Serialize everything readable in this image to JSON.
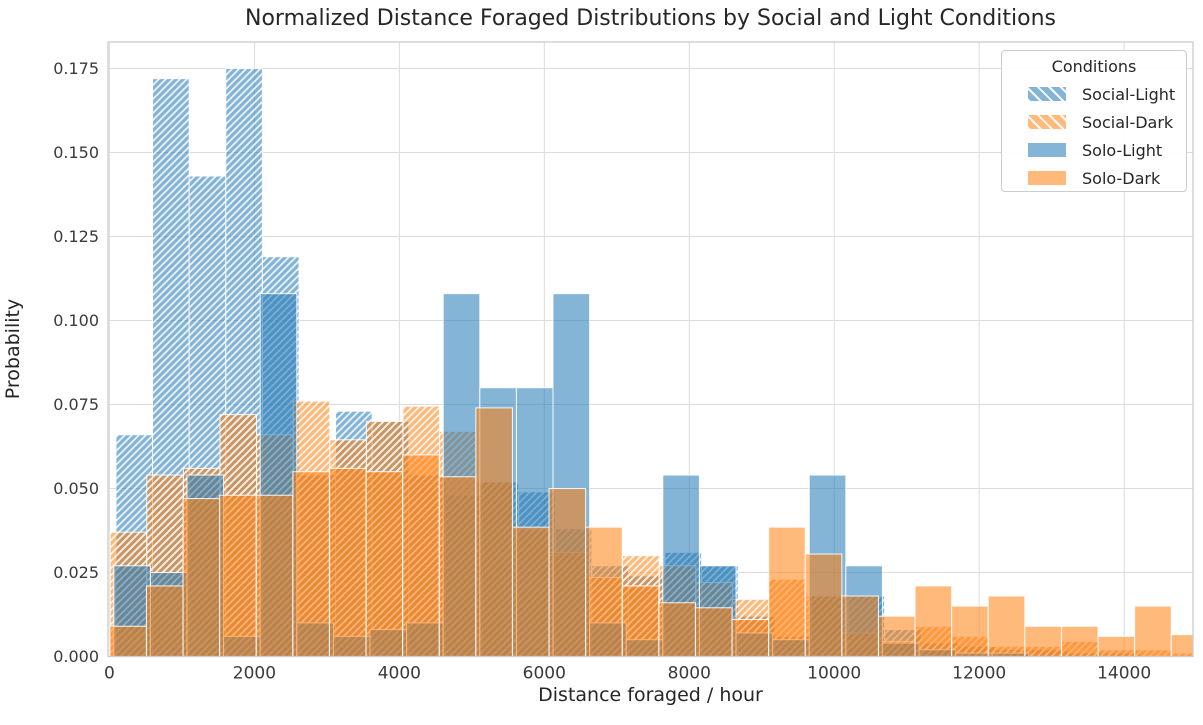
{
  "figure": {
    "title": "Normalized Distance Foraged Distributions by Social and Light Conditions",
    "xlabel": "Distance foraged / hour",
    "ylabel": "Probability"
  },
  "axes": {
    "xticks": [
      0,
      2000,
      4000,
      6000,
      8000,
      10000,
      12000,
      14000
    ],
    "ytick_labels": [
      "0.000",
      "0.025",
      "0.050",
      "0.075",
      "0.100",
      "0.125",
      "0.150",
      "0.175"
    ],
    "yticks": [
      0,
      0.025,
      0.05,
      0.075,
      0.1,
      0.125,
      0.15,
      0.175
    ],
    "xlim": [
      -20,
      14950
    ],
    "ylim": [
      0,
      0.1829
    ],
    "grid": true
  },
  "legend": {
    "title": "Conditions",
    "entries": [
      {
        "label": "Social-Light",
        "color": "#1f77b4",
        "hatch": true
      },
      {
        "label": "Social-Dark",
        "color": "#ff7f0e",
        "hatch": true
      },
      {
        "label": "Solo-Light",
        "color": "#1f77b4",
        "hatch": false
      },
      {
        "label": "Solo-Dark",
        "color": "#ff7f0e",
        "hatch": false
      }
    ]
  },
  "style": {
    "blue": "#1f77b4",
    "orange": "#ff7f0e",
    "bar_alpha": 0.55,
    "bar_edge_color": "#ffffff",
    "hatch_color": "#ffffff",
    "grid_color": "#dcdcdc",
    "spine_color": "#cbcbcb",
    "text_color": "#262626"
  },
  "chart_data": {
    "type": "bar",
    "subtype": "overlaid-histograms",
    "title": "Normalized Distance Foraged Distributions by Social and Light Conditions",
    "xlabel": "Distance foraged / hour",
    "ylabel": "Probability",
    "xlim": [
      -20,
      14950
    ],
    "ylim": [
      0,
      0.1829
    ],
    "legend_position": "upper right",
    "grid": "both",
    "series": [
      {
        "name": "Social-Light",
        "color": "#1f77b4",
        "hatch": true,
        "bin_start": 90,
        "bin_width": 505,
        "heights": [
          0.066,
          0.172,
          0.143,
          0.175,
          0.119,
          0.054,
          0.073,
          0.07,
          0.054,
          0.048,
          0.052,
          0.049,
          0.038,
          0.027,
          0.024,
          0.031,
          0.027,
          0.012,
          0.006,
          0.018,
          0.018,
          0.008,
          0.004,
          0.003,
          0.002,
          0.002,
          0.001,
          0.001,
          0,
          0
        ]
      },
      {
        "name": "Social-Dark",
        "color": "#ff7f0e",
        "hatch": true,
        "bin_start": 10,
        "bin_width": 505,
        "heights": [
          0.037,
          0.054,
          0.056,
          0.072,
          0.066,
          0.076,
          0.0645,
          0.07,
          0.0745,
          0.067,
          0.052,
          0.038,
          0.031,
          0.0235,
          0.03,
          0.027,
          0.022,
          0.017,
          0.023,
          0.018,
          0.007,
          0.0045,
          0.009,
          0.006,
          0.003,
          0.003,
          0.0045,
          0.002,
          0.002,
          0.001
        ]
      },
      {
        "name": "Solo-Light",
        "color": "#1f77b4",
        "hatch": false,
        "bin_start": 60,
        "bin_width": 505,
        "heights": [
          0.027,
          0.025,
          0.054,
          0.006,
          0.108,
          0.01,
          0.006,
          0.008,
          0.01,
          0.108,
          0.08,
          0.08,
          0.108,
          0.01,
          0.005,
          0.054,
          0.027,
          0.007,
          0.005,
          0.054,
          0.027,
          0.004,
          0.002,
          0.001,
          0.001,
          0,
          0,
          0,
          0,
          0
        ]
      },
      {
        "name": "Solo-Dark",
        "color": "#ff7f0e",
        "hatch": false,
        "bin_start": 5,
        "bin_width": 505,
        "heights": [
          0.009,
          0.021,
          0.047,
          0.048,
          0.048,
          0.055,
          0.056,
          0.055,
          0.06,
          0.0535,
          0.074,
          0.0385,
          0.05,
          0.0385,
          0.021,
          0.016,
          0.0145,
          0.011,
          0.0385,
          0.0305,
          0.018,
          0.012,
          0.021,
          0.015,
          0.018,
          0.009,
          0.009,
          0.006,
          0.015,
          0.0065
        ]
      }
    ]
  }
}
